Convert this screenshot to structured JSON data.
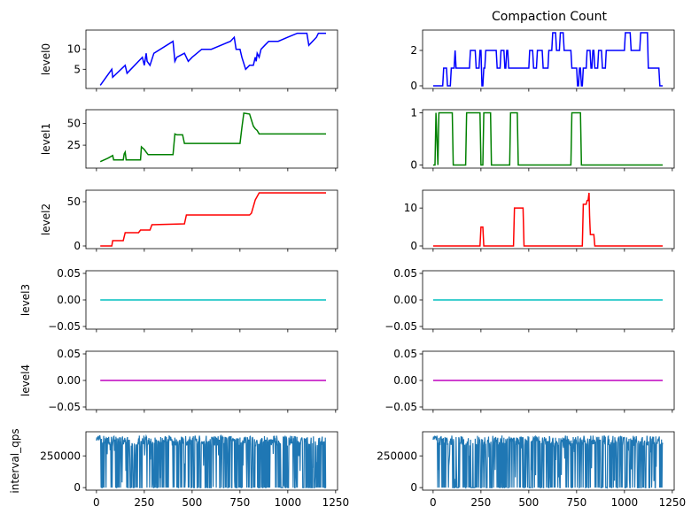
{
  "chart_data": {
    "type": "line",
    "title": "Compaction Count",
    "xticks": [
      0,
      250,
      500,
      750,
      1000,
      1250
    ],
    "xlim": [
      -55,
      1260
    ],
    "columns": [
      {
        "rows": [
          {
            "ylabel": "level0",
            "color": "#0000ff",
            "ylim": [
              0.2,
              14.8
            ],
            "yticks": [
              5,
              10
            ],
            "ytick_labels": [
              "5",
              "10"
            ],
            "x": [
              20,
              80,
              85,
              150,
              160,
              240,
              250,
              260,
              265,
              280,
              300,
              400,
              410,
              420,
              460,
              480,
              500,
              550,
              600,
              700,
              720,
              730,
              750,
              760,
              780,
              800,
              820,
              830,
              835,
              840,
              850,
              860,
              880,
              900,
              950,
              1000,
              1050,
              1100,
              1110,
              1150,
              1160,
              1200
            ],
            "y": [
              1,
              5,
              3,
              6,
              4,
              8,
              6,
              9,
              7,
              6,
              9,
              12,
              7,
              8,
              9,
              7,
              8,
              10,
              10,
              12,
              13,
              10,
              10,
              8,
              5,
              6,
              6,
              8,
              7,
              9,
              8,
              10,
              11,
              12,
              12,
              13,
              14,
              14,
              11,
              13,
              14,
              14
            ]
          },
          {
            "ylabel": "level1",
            "color": "#008000",
            "ylim": [
              -1.5,
              66
            ],
            "yticks": [
              25,
              50
            ],
            "ytick_labels": [
              "25",
              "50"
            ],
            "x": [
              20,
              60,
              85,
              90,
              140,
              145,
              150,
              155,
              160,
              230,
              235,
              250,
              260,
              270,
              280,
              350,
              400,
              410,
              420,
              450,
              460,
              750,
              760,
              770,
              800,
              820,
              830,
              840,
              850,
              900,
              1200
            ],
            "y": [
              6,
              10,
              13,
              8,
              8,
              15,
              17,
              8,
              8,
              8,
              23,
              20,
              17,
              14,
              14,
              14,
              14,
              38,
              37,
              37,
              27,
              27,
              45,
              62,
              61,
              47,
              44,
              42,
              38,
              38,
              38
            ]
          },
          {
            "ylabel": "level2",
            "color": "#ff0000",
            "ylim": [
              -3,
              63
            ],
            "yticks": [
              0,
              50
            ],
            "ytick_labels": [
              "0",
              "50"
            ],
            "x": [
              20,
              80,
              85,
              140,
              150,
              220,
              230,
              280,
              290,
              460,
              470,
              800,
              810,
              830,
              850,
              900,
              1000,
              1200
            ],
            "y": [
              0,
              0,
              6,
              6,
              15,
              15,
              18,
              18,
              24,
              25,
              35,
              35,
              37,
              52,
              60,
              60,
              60,
              60
            ]
          },
          {
            "ylabel": "level3",
            "color": "#00bfbf",
            "ylim": [
              -0.055,
              0.055
            ],
            "yticks": [
              -0.05,
              0,
              0.05
            ],
            "ytick_labels": [
              "−0.05",
              "0.00",
              "0.05"
            ],
            "x": [
              20,
              1200
            ],
            "y": [
              0,
              0
            ]
          },
          {
            "ylabel": "level4",
            "color": "#bf00bf",
            "ylim": [
              -0.055,
              0.055
            ],
            "yticks": [
              -0.05,
              0,
              0.05
            ],
            "ytick_labels": [
              "−0.05",
              "0.00",
              "0.05"
            ],
            "x": [
              20,
              1200
            ],
            "y": [
              0,
              0
            ]
          },
          {
            "ylabel": "interval_qps",
            "color": "#1f77b4",
            "ylim": [
              -20000,
              440000
            ],
            "yticks": [
              0,
              250000
            ],
            "ytick_labels": [
              "0",
              "250000"
            ],
            "noise": true,
            "x_range": [
              0,
              1200
            ],
            "baseline": 370000
          }
        ]
      },
      {
        "rows": [
          {
            "ylabel": "",
            "color": "#0000ff",
            "ylim": [
              -0.15,
              3.15
            ],
            "yticks": [
              0,
              2
            ],
            "ytick_labels": [
              "0",
              "2"
            ],
            "x": [
              0,
              50,
              55,
              70,
              75,
              90,
              95,
              110,
              115,
              120,
              125,
              140,
              145,
              190,
              195,
              220,
              225,
              240,
              245,
              250,
              255,
              260,
              265,
              270,
              275,
              330,
              335,
              350,
              355,
              370,
              375,
              380,
              385,
              390,
              395,
              400,
              405,
              500,
              505,
              520,
              525,
              540,
              545,
              570,
              575,
              600,
              605,
              620,
              625,
              640,
              645,
              660,
              665,
              680,
              685,
              720,
              725,
              750,
              755,
              760,
              765,
              770,
              775,
              780,
              785,
              800,
              805,
              820,
              825,
              830,
              835,
              840,
              845,
              860,
              865,
              880,
              885,
              900,
              905,
              1000,
              1005,
              1030,
              1035,
              1080,
              1085,
              1120,
              1125,
              1180,
              1185,
              1200
            ],
            "y": [
              0,
              0,
              1,
              1,
              0,
              0,
              1,
              1,
              2,
              1,
              1,
              1,
              1,
              1,
              2,
              2,
              1,
              1,
              2,
              2,
              0,
              0,
              1,
              1,
              2,
              2,
              1,
              1,
              2,
              2,
              1,
              1,
              2,
              2,
              1,
              1,
              1,
              1,
              2,
              2,
              1,
              1,
              2,
              2,
              1,
              1,
              2,
              2,
              3,
              3,
              2,
              2,
              3,
              3,
              2,
              2,
              1,
              1,
              0,
              0,
              1,
              1,
              0,
              0,
              1,
              1,
              2,
              2,
              1,
              1,
              2,
              2,
              1,
              1,
              2,
              2,
              1,
              1,
              2,
              2,
              3,
              3,
              2,
              2,
              3,
              3,
              1,
              1,
              0,
              0
            ]
          },
          {
            "ylabel": "",
            "color": "#008000",
            "ylim": [
              -0.06,
              1.06
            ],
            "yticks": [
              0,
              1
            ],
            "ytick_labels": [
              "0",
              "1"
            ],
            "x": [
              0,
              10,
              15,
              25,
              30,
              100,
              105,
              170,
              175,
              245,
              250,
              260,
              265,
              300,
              305,
              400,
              405,
              440,
              445,
              720,
              725,
              770,
              775,
              1200
            ],
            "y": [
              0,
              0,
              1,
              0,
              1,
              1,
              0,
              0,
              1,
              1,
              0,
              0,
              1,
              1,
              0,
              0,
              1,
              1,
              0,
              0,
              1,
              1,
              0,
              0
            ]
          },
          {
            "ylabel": "",
            "color": "#ff0000",
            "ylim": [
              -0.7,
              14.7
            ],
            "yticks": [
              0,
              10
            ],
            "ytick_labels": [
              "0",
              "10"
            ],
            "x": [
              0,
              245,
              250,
              260,
              265,
              420,
              425,
              470,
              475,
              780,
              785,
              800,
              805,
              810,
              815,
              818,
              820,
              822,
              830,
              840,
              845,
              1200
            ],
            "y": [
              0,
              0,
              5,
              5,
              0,
              0,
              10,
              10,
              0,
              0,
              11,
              11,
              12,
              12,
              14,
              8,
              5,
              3,
              3,
              3,
              0,
              0
            ]
          },
          {
            "ylabel": "",
            "color": "#00bfbf",
            "ylim": [
              -0.055,
              0.055
            ],
            "yticks": [
              -0.05,
              0,
              0.05
            ],
            "ytick_labels": [
              "−0.05",
              "0.00",
              "0.05"
            ],
            "x": [
              0,
              1200
            ],
            "y": [
              0,
              0
            ]
          },
          {
            "ylabel": "",
            "color": "#bf00bf",
            "ylim": [
              -0.055,
              0.055
            ],
            "yticks": [
              -0.05,
              0,
              0.05
            ],
            "ytick_labels": [
              "−0.05",
              "0.00",
              "0.05"
            ],
            "x": [
              0,
              1200
            ],
            "y": [
              0,
              0
            ]
          },
          {
            "ylabel": "",
            "color": "#1f77b4",
            "ylim": [
              -20000,
              440000
            ],
            "yticks": [
              0,
              250000
            ],
            "ytick_labels": [
              "0",
              "250000"
            ],
            "noise": true,
            "x_range": [
              0,
              1200
            ],
            "baseline": 370000
          }
        ]
      }
    ]
  }
}
